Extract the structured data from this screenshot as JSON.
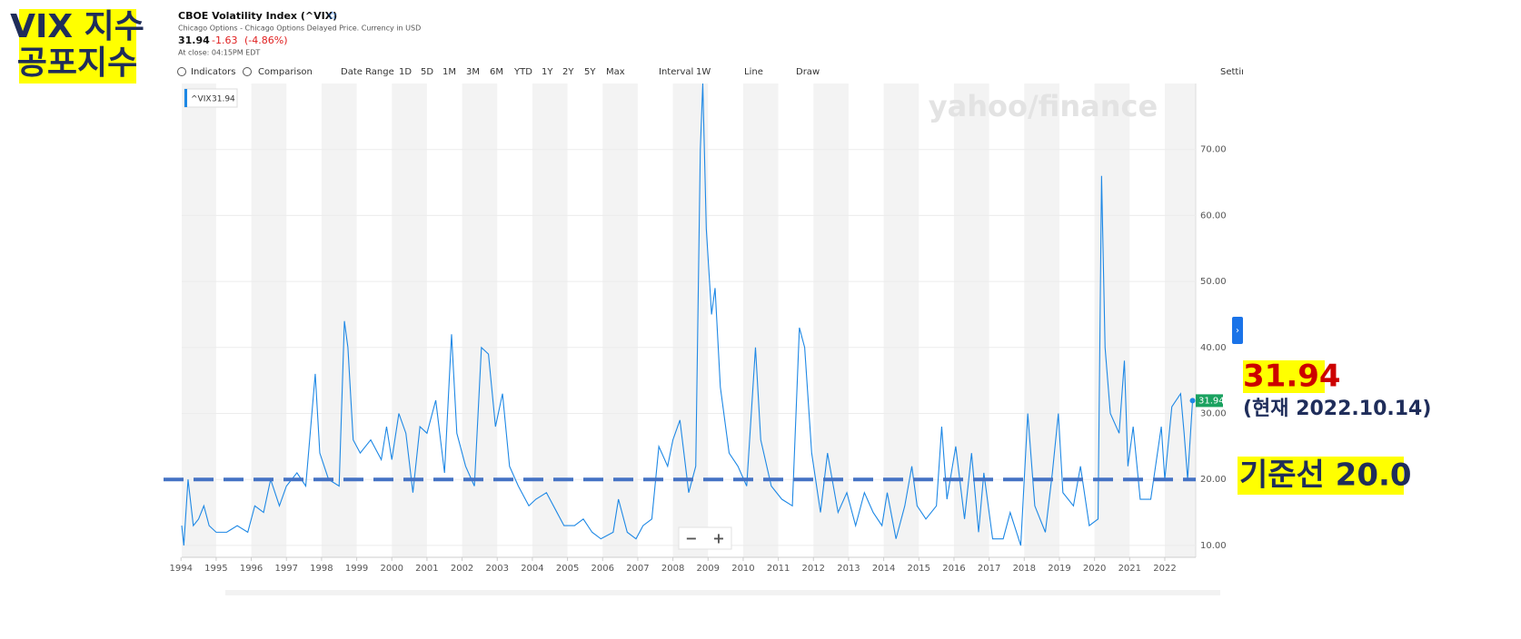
{
  "badge": [
    "VIX 지수",
    "공포지수"
  ],
  "header": {
    "title": "CBOE Volatility Index (^VIX)",
    "subtitle": "Chicago Options - Chicago Options Delayed Price. Currency in USD",
    "price": "31.94",
    "change": "-1.63",
    "change_percent": "(-4.86%)",
    "close_note": "At close: 04:15PM EDT"
  },
  "toolbar": [
    "Indicators",
    "Comparison",
    "Date Range",
    "1D",
    "5D",
    "1M",
    "3M",
    "6M",
    "YTD",
    "1Y",
    "2Y",
    "5Y",
    "Max",
    "Interval",
    "1W",
    "Line",
    "Draw",
    "Settings"
  ],
  "watermark": "yahoo/finance",
  "zoom": [
    "−",
    "+"
  ],
  "chart_data": {
    "type": "line",
    "x": [
      1994.02,
      1994.08,
      1994.2,
      1994.35,
      1994.5,
      1994.65,
      1994.8,
      1995.0,
      1995.3,
      1995.6,
      1995.9,
      1996.1,
      1996.35,
      1996.55,
      1996.8,
      1997.0,
      1997.3,
      1997.55,
      1997.82,
      1997.95,
      1998.2,
      1998.5,
      1998.65,
      1998.75,
      1998.9,
      1999.1,
      1999.4,
      1999.7,
      1999.85,
      2000.0,
      2000.2,
      2000.4,
      2000.6,
      2000.8,
      2001.0,
      2001.25,
      2001.5,
      2001.7,
      2001.85,
      2002.1,
      2002.35,
      2002.55,
      2002.75,
      2002.95,
      2003.15,
      2003.35,
      2003.6,
      2003.9,
      2004.1,
      2004.4,
      2004.7,
      2004.9,
      2005.2,
      2005.45,
      2005.7,
      2005.95,
      2006.3,
      2006.45,
      2006.7,
      2006.95,
      2007.15,
      2007.4,
      2007.6,
      2007.85,
      2008.0,
      2008.2,
      2008.45,
      2008.65,
      2008.78,
      2008.85,
      2008.95,
      2009.1,
      2009.2,
      2009.35,
      2009.6,
      2009.85,
      2010.1,
      2010.35,
      2010.5,
      2010.8,
      2011.1,
      2011.4,
      2011.6,
      2011.75,
      2011.95,
      2012.2,
      2012.4,
      2012.7,
      2012.95,
      2013.2,
      2013.45,
      2013.7,
      2013.95,
      2014.1,
      2014.35,
      2014.6,
      2014.8,
      2014.95,
      2015.2,
      2015.5,
      2015.65,
      2015.8,
      2016.05,
      2016.3,
      2016.5,
      2016.7,
      2016.85,
      2017.1,
      2017.4,
      2017.6,
      2017.9,
      2018.1,
      2018.3,
      2018.6,
      2018.8,
      2018.97,
      2019.1,
      2019.4,
      2019.6,
      2019.85,
      2020.1,
      2020.2,
      2020.3,
      2020.45,
      2020.7,
      2020.85,
      2020.95,
      2021.1,
      2021.3,
      2021.6,
      2021.9,
      2022.0,
      2022.2,
      2022.45,
      2022.55,
      2022.65,
      2022.79
    ],
    "series": [
      {
        "name": "^VIX",
        "color": "#1e88e5",
        "values": [
          13,
          10,
          20,
          13,
          14,
          16,
          13,
          12,
          12,
          13,
          12,
          16,
          15,
          20,
          16,
          19,
          21,
          19,
          36,
          24,
          20,
          19,
          44,
          40,
          26,
          24,
          26,
          23,
          28,
          23,
          30,
          27,
          18,
          28,
          27,
          32,
          21,
          42,
          27,
          22,
          19,
          40,
          39,
          28,
          33,
          22,
          19,
          16,
          17,
          18,
          15,
          13,
          13,
          14,
          12,
          11,
          12,
          17,
          12,
          11,
          13,
          14,
          25,
          22,
          26,
          29,
          18,
          22,
          70,
          80,
          58,
          45,
          49,
          34,
          24,
          22,
          19,
          40,
          26,
          19,
          17,
          16,
          43,
          40,
          24,
          15,
          24,
          15,
          18,
          13,
          18,
          15,
          13,
          18,
          11,
          16,
          22,
          16,
          14,
          16,
          28,
          17,
          25,
          14,
          24,
          12,
          21,
          11,
          11,
          15,
          10,
          30,
          16,
          12,
          21,
          30,
          18,
          16,
          22,
          13,
          14,
          66,
          40,
          30,
          27,
          38,
          22,
          28,
          17,
          17,
          28,
          20,
          31,
          33,
          27,
          20,
          31.94
        ]
      }
    ],
    "xlim": [
      1994.02,
      2022.88
    ],
    "xticks": [
      1994,
      1995,
      1996,
      1997,
      1998,
      1999,
      2000,
      2001,
      2002,
      2003,
      2004,
      2005,
      2006,
      2007,
      2008,
      2009,
      2010,
      2011,
      2012,
      2013,
      2014,
      2015,
      2016,
      2017,
      2018,
      2019,
      2020,
      2021,
      2022
    ],
    "ylim": [
      8.2,
      80
    ],
    "yticks": [
      {
        "value": 10,
        "label": "10.00"
      },
      {
        "value": 20,
        "label": "20.00"
      },
      {
        "value": 30,
        "label": "30.00"
      },
      {
        "value": 40,
        "label": "40.00"
      },
      {
        "value": 50,
        "label": "50.00"
      },
      {
        "value": 60,
        "label": "60.00"
      },
      {
        "value": 70,
        "label": "70.00"
      }
    ],
    "grid": true,
    "reference_line": {
      "value": 20,
      "label": "기준선 20.0",
      "color": "#4472c4"
    },
    "annotations": [
      "31.94",
      "(현재 2022.10.14)"
    ]
  }
}
